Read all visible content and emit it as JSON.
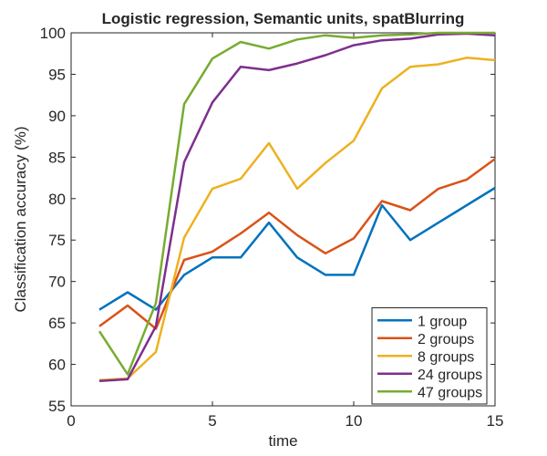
{
  "chart_data": {
    "type": "line",
    "title": "Logistic regression, Semantic units, spatBlurring",
    "xlabel": "time",
    "ylabel": "Classification accuracy (%)",
    "xlim": [
      0,
      15
    ],
    "ylim": [
      55,
      100
    ],
    "xticks": [
      0,
      5,
      10,
      15
    ],
    "yticks": [
      55,
      60,
      65,
      70,
      75,
      80,
      85,
      90,
      95,
      100
    ],
    "grid": false,
    "legend_position": "bottom-right",
    "x": [
      1,
      2,
      3,
      4,
      5,
      6,
      7,
      8,
      9,
      10,
      11,
      12,
      13,
      14,
      15
    ],
    "series": [
      {
        "name": "1 group",
        "color": "#0072BD",
        "values": [
          66.6,
          68.7,
          66.6,
          70.8,
          72.9,
          72.9,
          77.1,
          72.9,
          70.8,
          70.8,
          79.2,
          75.0,
          77.1,
          79.2,
          81.3
        ]
      },
      {
        "name": "2 groups",
        "color": "#D95319",
        "values": [
          64.6,
          67.1,
          64.3,
          72.6,
          73.6,
          75.8,
          78.3,
          75.6,
          73.4,
          75.2,
          79.7,
          78.6,
          81.2,
          82.3,
          84.8
        ]
      },
      {
        "name": "8 groups",
        "color": "#EDB120",
        "values": [
          58.1,
          58.3,
          61.5,
          75.3,
          81.2,
          82.4,
          86.7,
          81.2,
          84.3,
          87.0,
          93.3,
          95.9,
          96.2,
          97.0,
          96.7
        ]
      },
      {
        "name": "24 groups",
        "color": "#7E2F8E",
        "values": [
          58.0,
          58.2,
          64.6,
          84.4,
          91.6,
          95.9,
          95.5,
          96.3,
          97.3,
          98.5,
          99.1,
          99.3,
          99.8,
          99.9,
          99.7
        ]
      },
      {
        "name": "47 groups",
        "color": "#77AC30",
        "values": [
          64.0,
          58.8,
          67.4,
          91.4,
          96.9,
          98.9,
          98.1,
          99.2,
          99.7,
          99.4,
          99.7,
          99.8,
          100.0,
          100.0,
          100.0
        ]
      }
    ]
  }
}
